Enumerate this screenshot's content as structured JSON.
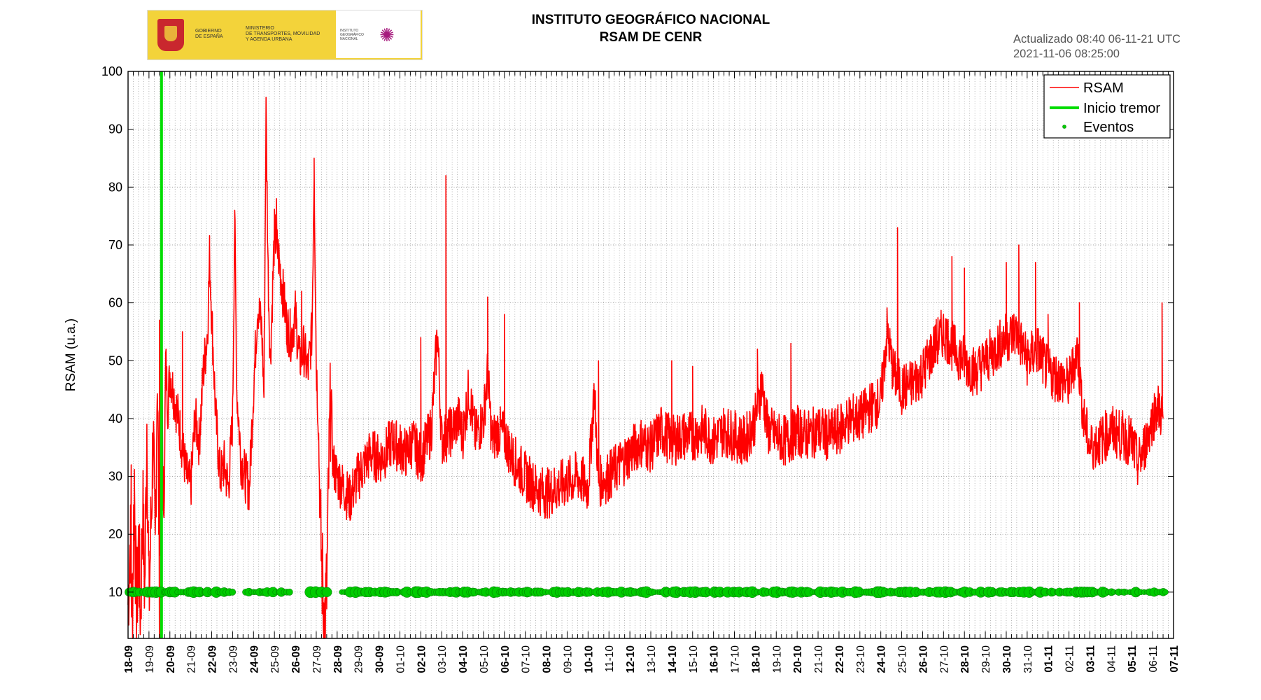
{
  "header": {
    "logo_left_text": [
      "GOBIERNO",
      "DE ESPAÑA",
      "MINISTERIO",
      "DE TRANSPORTES, MOVILIDAD",
      "Y AGENDA URBANA"
    ],
    "logo_right_text": [
      "INSTITUTO",
      "GEOGRÁFICO",
      "NACIONAL"
    ],
    "title_line1": "INSTITUTO GEOGRÁFICO NACIONAL",
    "title_line2": "RSAM DE CENR",
    "updated_line1": "Actualizado 08:40 06-11-21 UTC",
    "updated_line2": "2021-11-06 08:25:00"
  },
  "colors": {
    "rsam": "#ff0000",
    "tremor": "#00dd00",
    "events": "#00cc00",
    "events_stroke": "#008800"
  },
  "chart_data": {
    "type": "line",
    "ylabel": "RSAM (u.a.)",
    "ylim": [
      2,
      100
    ],
    "yticks": [
      10,
      20,
      30,
      40,
      50,
      60,
      70,
      80,
      90,
      100
    ],
    "xlim_days": [
      0,
      50
    ],
    "xtick_labels": [
      "18-09",
      "19-09",
      "20-09",
      "21-09",
      "22-09",
      "23-09",
      "24-09",
      "25-09",
      "26-09",
      "27-09",
      "28-09",
      "29-09",
      "30-09",
      "01-10",
      "02-10",
      "03-10",
      "04-10",
      "05-10",
      "06-10",
      "07-10",
      "08-10",
      "09-10",
      "10-10",
      "11-10",
      "12-10",
      "13-10",
      "14-10",
      "15-10",
      "16-10",
      "17-10",
      "18-10",
      "19-10",
      "20-10",
      "21-10",
      "22-10",
      "23-10",
      "24-10",
      "25-10",
      "26-10",
      "27-10",
      "28-10",
      "29-10",
      "30-10",
      "31-10",
      "01-11",
      "02-11",
      "03-11",
      "04-11",
      "05-11",
      "06-11",
      "07-11"
    ],
    "grid": true,
    "legend": {
      "position": "top-right",
      "entries": [
        "RSAM",
        "Inicio tremor",
        "Eventos"
      ]
    },
    "series": [
      {
        "name": "RSAM",
        "points": [
          [
            0.0,
            8
          ],
          [
            0.1,
            20
          ],
          [
            0.2,
            5
          ],
          [
            0.3,
            30
          ],
          [
            0.4,
            4
          ],
          [
            0.5,
            18
          ],
          [
            0.6,
            6
          ],
          [
            0.7,
            25
          ],
          [
            0.8,
            10
          ],
          [
            0.9,
            40
          ],
          [
            1.0,
            8
          ],
          [
            1.1,
            22
          ],
          [
            1.2,
            38
          ],
          [
            1.3,
            15
          ],
          [
            1.4,
            50
          ],
          [
            1.5,
            12
          ],
          [
            1.6,
            55
          ],
          [
            1.7,
            20
          ],
          [
            1.8,
            50
          ],
          [
            1.9,
            42
          ],
          [
            2.0,
            48
          ],
          [
            2.2,
            44
          ],
          [
            2.4,
            40
          ],
          [
            2.6,
            35
          ],
          [
            2.8,
            30
          ],
          [
            3.0,
            28
          ],
          [
            3.2,
            40
          ],
          [
            3.4,
            36
          ],
          [
            3.6,
            48
          ],
          [
            3.8,
            55
          ],
          [
            3.9,
            68
          ],
          [
            4.0,
            58
          ],
          [
            4.2,
            40
          ],
          [
            4.4,
            30
          ],
          [
            4.6,
            32
          ],
          [
            4.8,
            28
          ],
          [
            5.0,
            40
          ],
          [
            5.1,
            75
          ],
          [
            5.2,
            45
          ],
          [
            5.4,
            33
          ],
          [
            5.6,
            30
          ],
          [
            5.8,
            28
          ],
          [
            6.0,
            45
          ],
          [
            6.2,
            60
          ],
          [
            6.4,
            55
          ],
          [
            6.5,
            44
          ],
          [
            6.6,
            93
          ],
          [
            6.7,
            65
          ],
          [
            6.8,
            50
          ],
          [
            7.0,
            72
          ],
          [
            7.2,
            68
          ],
          [
            7.4,
            62
          ],
          [
            7.6,
            56
          ],
          [
            7.8,
            54
          ],
          [
            8.0,
            58
          ],
          [
            8.2,
            50
          ],
          [
            8.4,
            52
          ],
          [
            8.6,
            48
          ],
          [
            8.8,
            55
          ],
          [
            8.9,
            84
          ],
          [
            9.0,
            50
          ],
          [
            9.1,
            40
          ],
          [
            9.2,
            20
          ],
          [
            9.3,
            12
          ],
          [
            9.4,
            5
          ],
          [
            9.5,
            10
          ],
          [
            9.6,
            30
          ],
          [
            9.7,
            45
          ],
          [
            9.8,
            32
          ],
          [
            10.0,
            30
          ],
          [
            10.3,
            28
          ],
          [
            10.6,
            26
          ],
          [
            11.0,
            30
          ],
          [
            11.3,
            32
          ],
          [
            11.6,
            34
          ],
          [
            12.0,
            33
          ],
          [
            12.3,
            34
          ],
          [
            12.6,
            36
          ],
          [
            13.0,
            35
          ],
          [
            13.3,
            34
          ],
          [
            13.6,
            36
          ],
          [
            14.0,
            33
          ],
          [
            14.5,
            38
          ],
          [
            14.8,
            55
          ],
          [
            15.0,
            36
          ],
          [
            15.5,
            38
          ],
          [
            15.8,
            40
          ],
          [
            16.0,
            37
          ],
          [
            16.3,
            45
          ],
          [
            16.6,
            37
          ],
          [
            17.0,
            40
          ],
          [
            17.2,
            48
          ],
          [
            17.4,
            36
          ],
          [
            17.7,
            38
          ],
          [
            18.0,
            37
          ],
          [
            18.3,
            34
          ],
          [
            18.6,
            32
          ],
          [
            19.0,
            30
          ],
          [
            19.5,
            28
          ],
          [
            20.0,
            27
          ],
          [
            20.5,
            28
          ],
          [
            21.0,
            29
          ],
          [
            21.5,
            30
          ],
          [
            22.0,
            28
          ],
          [
            22.3,
            45
          ],
          [
            22.5,
            29
          ],
          [
            23.0,
            30
          ],
          [
            23.5,
            32
          ],
          [
            24.0,
            34
          ],
          [
            24.5,
            36
          ],
          [
            25.0,
            35
          ],
          [
            25.5,
            38
          ],
          [
            26.0,
            36
          ],
          [
            26.5,
            37
          ],
          [
            27.0,
            37
          ],
          [
            27.5,
            38
          ],
          [
            28.0,
            36
          ],
          [
            28.5,
            38
          ],
          [
            29.0,
            37
          ],
          [
            29.5,
            36
          ],
          [
            30.0,
            40
          ],
          [
            30.3,
            46
          ],
          [
            30.6,
            38
          ],
          [
            31.0,
            37
          ],
          [
            31.5,
            36
          ],
          [
            32.0,
            38
          ],
          [
            32.5,
            37
          ],
          [
            33.0,
            38
          ],
          [
            33.5,
            37
          ],
          [
            34.0,
            38
          ],
          [
            34.5,
            40
          ],
          [
            35.0,
            40
          ],
          [
            35.5,
            42
          ],
          [
            36.0,
            43
          ],
          [
            36.3,
            55
          ],
          [
            36.6,
            48
          ],
          [
            37.0,
            45
          ],
          [
            37.5,
            46
          ],
          [
            38.0,
            48
          ],
          [
            38.5,
            52
          ],
          [
            39.0,
            55
          ],
          [
            39.5,
            52
          ],
          [
            40.0,
            50
          ],
          [
            40.5,
            48
          ],
          [
            41.0,
            50
          ],
          [
            41.5,
            52
          ],
          [
            42.0,
            54
          ],
          [
            42.5,
            55
          ],
          [
            43.0,
            50
          ],
          [
            43.5,
            52
          ],
          [
            44.0,
            48
          ],
          [
            44.5,
            47
          ],
          [
            45.0,
            46
          ],
          [
            45.4,
            52
          ],
          [
            45.7,
            40
          ],
          [
            46.0,
            35
          ],
          [
            46.5,
            36
          ],
          [
            47.0,
            38
          ],
          [
            47.5,
            37
          ],
          [
            48.0,
            36
          ],
          [
            48.3,
            32
          ],
          [
            48.6,
            35
          ],
          [
            49.0,
            40
          ],
          [
            49.2,
            42
          ],
          [
            49.4,
            41
          ],
          [
            49.5,
            40
          ]
        ],
        "spikes": [
          [
            0.15,
            32
          ],
          [
            1.5,
            57
          ],
          [
            2.6,
            55
          ],
          [
            3.9,
            70
          ],
          [
            5.1,
            76
          ],
          [
            6.6,
            95
          ],
          [
            7.1,
            78
          ],
          [
            8.3,
            62
          ],
          [
            8.9,
            85
          ],
          [
            9.35,
            2
          ],
          [
            15.2,
            82
          ],
          [
            14.0,
            54
          ],
          [
            17.2,
            61
          ],
          [
            18.0,
            58
          ],
          [
            22.5,
            50
          ],
          [
            26.0,
            50
          ],
          [
            27.0,
            49
          ],
          [
            30.1,
            52
          ],
          [
            31.7,
            53
          ],
          [
            36.8,
            73
          ],
          [
            39.4,
            68
          ],
          [
            40.0,
            66
          ],
          [
            42.0,
            67
          ],
          [
            42.6,
            70
          ],
          [
            43.4,
            67
          ],
          [
            44.0,
            58
          ],
          [
            45.5,
            60
          ],
          [
            49.45,
            60
          ]
        ]
      },
      {
        "name": "Inicio tremor",
        "x_day": 1.6
      },
      {
        "name": "Eventos",
        "y": 10,
        "x_ranges": [
          [
            0,
            1.6
          ],
          [
            1.7,
            5.0
          ],
          [
            5.6,
            7.8
          ],
          [
            8.7,
            9.5
          ],
          [
            10.2,
            49.6
          ]
        ]
      }
    ]
  }
}
